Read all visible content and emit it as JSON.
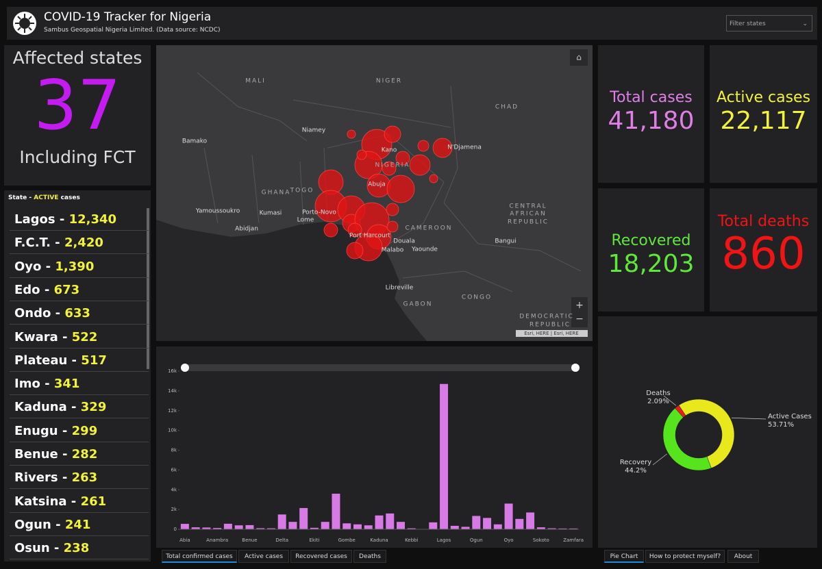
{
  "header": {
    "title": "COVID-19 Tracker for Nigeria",
    "subtitle": "Sambus Geospatial Nigeria Limited. (Data source: NCDC)",
    "filter": "Filter states"
  },
  "affected": {
    "label": "Affected states",
    "value": "37",
    "note": "Including FCT"
  },
  "state_list": {
    "header_prefix": "State - ",
    "header_em": "ACTIVE",
    "header_suffix": " cases",
    "items": [
      {
        "name": "Lagos - ",
        "value": "12,340"
      },
      {
        "name": "F.C.T. - ",
        "value": "2,420"
      },
      {
        "name": "Oyo - ",
        "value": "1,390"
      },
      {
        "name": "Edo - ",
        "value": "673"
      },
      {
        "name": "Ondo - ",
        "value": "633"
      },
      {
        "name": "Kwara - ",
        "value": "522"
      },
      {
        "name": "Plateau - ",
        "value": "517"
      },
      {
        "name": "Imo - ",
        "value": "341"
      },
      {
        "name": "Kaduna - ",
        "value": "329"
      },
      {
        "name": "Enugu - ",
        "value": "299"
      },
      {
        "name": "Benue - ",
        "value": "282"
      },
      {
        "name": "Rivers - ",
        "value": "263"
      },
      {
        "name": "Katsina - ",
        "value": "261"
      },
      {
        "name": "Ogun - ",
        "value": "241"
      },
      {
        "name": "Osun - ",
        "value": "238"
      }
    ]
  },
  "stats": [
    {
      "label": "Total cases",
      "value": "41,180",
      "color": "#e07ee8"
    },
    {
      "label": "Active cases",
      "value": "22,117",
      "color": "#f2f23a"
    },
    {
      "label": "Recovered",
      "value": "18,203",
      "color": "#5fe83a"
    },
    {
      "label": "Total deaths",
      "value": "860",
      "color": "#f01414"
    }
  ],
  "map": {
    "labels": [
      "MALI",
      "NIGER",
      "CHAD",
      "Bamako",
      "Niamey",
      "Kano",
      "N'Djamena",
      "GHANA",
      "TOGO",
      "NIGERIA",
      "Abuja",
      "Yamoussoukro",
      "Kumasi",
      "Abidjan",
      "Porto-Novo",
      "Lome",
      "Port Harcourt",
      "Douala",
      "Yaounde",
      "CAMEROON",
      "Malabo",
      "CENTRAL",
      "AFRICAN",
      "REPUBLIC",
      "Bangui",
      "Libreville",
      "GABON",
      "CONGO",
      "DEMOCRATIC",
      "REPUBLIC"
    ],
    "attribution": "Esri, HERE | Esri, HERE"
  },
  "chart_data": [
    {
      "type": "bar",
      "color": "#d77ae6",
      "categories": [
        "Abia",
        null,
        null,
        "Anambra",
        null,
        null,
        "Benue",
        null,
        null,
        "Delta",
        null,
        null,
        "Ekiti",
        null,
        null,
        "Gombe",
        null,
        null,
        "Kaduna",
        null,
        null,
        "Kebbi",
        null,
        null,
        "Lagos",
        null,
        null,
        "Ogun",
        null,
        null,
        "Oyo",
        null,
        null,
        "Sokoto",
        null,
        null,
        "Zamfara"
      ],
      "values": [
        550,
        200,
        180,
        130,
        560,
        400,
        420,
        110,
        100,
        1500,
        750,
        2150,
        150,
        750,
        3600,
        600,
        500,
        400,
        1400,
        1600,
        750,
        100,
        5,
        700,
        14700,
        350,
        250,
        1350,
        1150,
        500,
        2600,
        1050,
        1700,
        200,
        100,
        80,
        80
      ],
      "ylim": [
        0,
        16000
      ],
      "yticks": [
        0,
        {
          "value": 2000,
          "label": "2k"
        },
        {
          "value": 4000,
          "label": "4k"
        },
        {
          "value": 6000,
          "label": "6k"
        },
        {
          "value": 8000,
          "label": "8k"
        },
        {
          "value": 10000,
          "label": "10k"
        },
        {
          "value": 12000,
          "label": "12k"
        },
        {
          "value": 14000,
          "label": "14k"
        },
        {
          "value": 16000,
          "label": "16k"
        }
      ],
      "grid": false
    },
    {
      "type": "pie",
      "donut": true,
      "categories": [
        "Active Cases",
        "Recovery",
        "Deaths"
      ],
      "values": [
        53.71,
        44.2,
        2.09
      ],
      "value_labels": [
        "53.71%",
        "44.2%",
        "2.09%"
      ],
      "colors": [
        "#e8e81c",
        "#56e51c",
        "#e81c1c"
      ]
    }
  ],
  "tabs": {
    "left": [
      "Total confirmed cases",
      "Active cases",
      "Recovered cases",
      "Deaths"
    ],
    "right": [
      "Pie Chart",
      "How to protect myself?",
      "About"
    ]
  }
}
